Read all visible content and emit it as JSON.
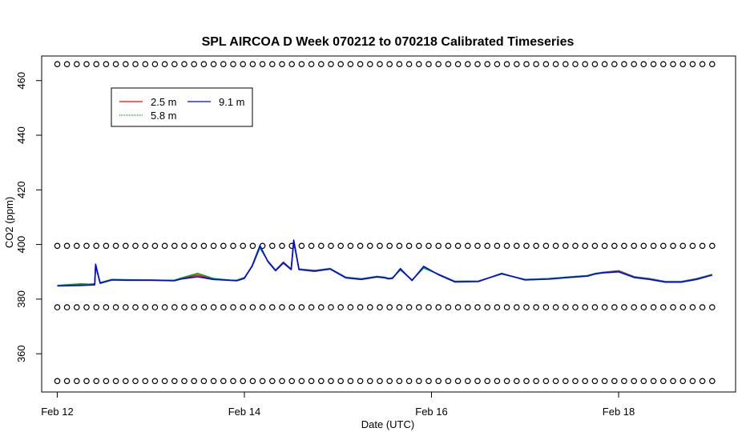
{
  "chart_data": {
    "type": "line",
    "title": "SPL AIRCOA D  Week 070212 to 070218  Calibrated Timeseries",
    "xlabel": "Date (UTC)",
    "ylabel": "CO2 (ppm)",
    "xlim": [
      "2007-02-11T20:00",
      "2007-02-19T06:00"
    ],
    "ylim": [
      346,
      469
    ],
    "x_ticks": [
      {
        "label": "Feb 12",
        "value": "2007-02-12T00:00"
      },
      {
        "label": "Feb 14",
        "value": "2007-02-14T00:00"
      },
      {
        "label": "Feb 16",
        "value": "2007-02-16T00:00"
      },
      {
        "label": "Feb 18",
        "value": "2007-02-18T00:00"
      }
    ],
    "y_ticks": [
      360,
      380,
      400,
      420,
      440,
      460
    ],
    "legend_position": "top-left",
    "series": [
      {
        "name": "2.5 m",
        "color": "#ff0000",
        "x": [
          "2007-02-12T00:00",
          "2007-02-12T06:00",
          "2007-02-12T09:36",
          "2007-02-12T09:50",
          "2007-02-12T11:00",
          "2007-02-12T14:00",
          "2007-02-12T18:00",
          "2007-02-13T00:00",
          "2007-02-13T06:00",
          "2007-02-13T08:00",
          "2007-02-13T12:00",
          "2007-02-13T16:00",
          "2007-02-13T20:00",
          "2007-02-13T22:00",
          "2007-02-14T00:00",
          "2007-02-14T02:00",
          "2007-02-14T04:00",
          "2007-02-14T06:00",
          "2007-02-14T08:00",
          "2007-02-14T10:00",
          "2007-02-14T12:00",
          "2007-02-14T12:40",
          "2007-02-14T14:00",
          "2007-02-14T18:00",
          "2007-02-14T22:00",
          "2007-02-15T02:00",
          "2007-02-15T06:00",
          "2007-02-15T10:00",
          "2007-02-15T12:00",
          "2007-02-15T13:00",
          "2007-02-15T14:00",
          "2007-02-15T16:00",
          "2007-02-15T19:00",
          "2007-02-15T22:00",
          "2007-02-16T02:00",
          "2007-02-16T06:00",
          "2007-02-16T12:00",
          "2007-02-16T18:00",
          "2007-02-17T00:00",
          "2007-02-17T06:00",
          "2007-02-17T12:00",
          "2007-02-17T16:00",
          "2007-02-17T18:00",
          "2007-02-17T20:00",
          "2007-02-18T00:00",
          "2007-02-18T04:00",
          "2007-02-18T08:00",
          "2007-02-18T12:00",
          "2007-02-18T16:00",
          "2007-02-18T20:00",
          "2007-02-19T00:00"
        ],
        "y": [
          385,
          385.2,
          385.6,
          392.2,
          386,
          387.2,
          387,
          387,
          386.8,
          387.6,
          388.8,
          387.4,
          387,
          386.8,
          387.8,
          392,
          399,
          394,
          390.6,
          393.6,
          391,
          401.2,
          391,
          390.5,
          391.2,
          388,
          387.4,
          388.3,
          388,
          387.6,
          387.8,
          390.8,
          387,
          391.5,
          389,
          386.5,
          386.6,
          389.2,
          387.2,
          387.5,
          388.2,
          388.6,
          389.4,
          389.8,
          390.4,
          388.2,
          387.5,
          386.4,
          386.4,
          387.5,
          389
        ]
      },
      {
        "name": "5.8 m",
        "color": "#00aa00",
        "x": [
          "2007-02-12T00:00",
          "2007-02-12T06:00",
          "2007-02-12T09:36",
          "2007-02-12T09:50",
          "2007-02-12T11:00",
          "2007-02-12T14:00",
          "2007-02-12T18:00",
          "2007-02-13T00:00",
          "2007-02-13T06:00",
          "2007-02-13T08:00",
          "2007-02-13T12:00",
          "2007-02-13T16:00",
          "2007-02-13T20:00",
          "2007-02-13T22:00",
          "2007-02-14T00:00",
          "2007-02-14T02:00",
          "2007-02-14T04:00",
          "2007-02-14T06:00",
          "2007-02-14T08:00",
          "2007-02-14T10:00",
          "2007-02-14T12:00",
          "2007-02-14T12:40",
          "2007-02-14T14:00",
          "2007-02-14T18:00",
          "2007-02-14T22:00",
          "2007-02-15T02:00",
          "2007-02-15T06:00",
          "2007-02-15T10:00",
          "2007-02-15T12:00",
          "2007-02-15T13:00",
          "2007-02-15T14:00",
          "2007-02-15T16:00",
          "2007-02-15T19:00",
          "2007-02-15T22:00",
          "2007-02-16T02:00",
          "2007-02-16T06:00",
          "2007-02-16T12:00",
          "2007-02-16T18:00",
          "2007-02-17T00:00",
          "2007-02-17T06:00",
          "2007-02-17T12:00",
          "2007-02-17T16:00",
          "2007-02-17T18:00",
          "2007-02-17T20:00",
          "2007-02-18T00:00",
          "2007-02-18T04:00",
          "2007-02-18T08:00",
          "2007-02-18T12:00",
          "2007-02-18T16:00",
          "2007-02-18T20:00",
          "2007-02-19T00:00"
        ],
        "y": [
          385,
          385.6,
          385.4,
          392,
          386,
          387.2,
          387.1,
          387,
          386.9,
          387.8,
          389.4,
          387.6,
          387,
          386.9,
          387.9,
          392,
          398.8,
          394,
          390.6,
          393.4,
          391,
          400.8,
          391,
          390.4,
          391.2,
          388,
          387.4,
          388.3,
          388,
          387.6,
          387.8,
          390.7,
          387,
          391.4,
          389,
          386.5,
          386.6,
          389.2,
          387.2,
          387.5,
          388.2,
          388.6,
          389.4,
          389.8,
          390.2,
          388.1,
          387.4,
          386.4,
          386.4,
          387.4,
          389
        ]
      },
      {
        "name": "9.1 m",
        "color": "#0000ff",
        "x": [
          "2007-02-12T00:00",
          "2007-02-12T06:00",
          "2007-02-12T09:36",
          "2007-02-12T09:50",
          "2007-02-12T11:00",
          "2007-02-12T14:00",
          "2007-02-12T18:00",
          "2007-02-13T00:00",
          "2007-02-13T06:00",
          "2007-02-13T08:00",
          "2007-02-13T12:00",
          "2007-02-13T16:00",
          "2007-02-13T20:00",
          "2007-02-13T22:00",
          "2007-02-14T00:00",
          "2007-02-14T02:00",
          "2007-02-14T04:00",
          "2007-02-14T06:00",
          "2007-02-14T08:00",
          "2007-02-14T10:00",
          "2007-02-14T12:00",
          "2007-02-14T12:40",
          "2007-02-14T14:00",
          "2007-02-14T18:00",
          "2007-02-14T22:00",
          "2007-02-15T02:00",
          "2007-02-15T06:00",
          "2007-02-15T10:00",
          "2007-02-15T12:00",
          "2007-02-15T13:00",
          "2007-02-15T14:00",
          "2007-02-15T16:00",
          "2007-02-15T19:00",
          "2007-02-15T22:00",
          "2007-02-16T02:00",
          "2007-02-16T06:00",
          "2007-02-16T12:00",
          "2007-02-16T18:00",
          "2007-02-17T00:00",
          "2007-02-17T06:00",
          "2007-02-17T12:00",
          "2007-02-17T16:00",
          "2007-02-17T18:00",
          "2007-02-17T20:00",
          "2007-02-18T00:00",
          "2007-02-18T04:00",
          "2007-02-18T08:00",
          "2007-02-18T12:00",
          "2007-02-18T16:00",
          "2007-02-18T20:00",
          "2007-02-19T00:00"
        ],
        "y": [
          384.8,
          385,
          385.2,
          392.8,
          385.8,
          387,
          386.9,
          386.9,
          386.7,
          387.4,
          388.2,
          387.2,
          386.9,
          386.7,
          387.6,
          392.2,
          399.6,
          393.8,
          390.4,
          393.2,
          390.8,
          401.6,
          390.8,
          390.2,
          391,
          387.8,
          387.2,
          388.1,
          387.8,
          387.4,
          387.6,
          391.2,
          386.8,
          392,
          388.8,
          386.3,
          386.4,
          389.4,
          387,
          387.3,
          388,
          388.4,
          389.2,
          389.6,
          390,
          387.9,
          387.2,
          386.2,
          386.2,
          387.2,
          388.8
        ]
      },
      {
        "name": "",
        "color": "#000000",
        "marker": "circle",
        "x_start": "2007-02-12T00:00",
        "x_end": "2007-02-19T00:00",
        "count": 68,
        "levels": [
          350,
          377,
          399.5,
          466
        ]
      }
    ],
    "legend": [
      {
        "label": "2.5 m",
        "color": "#ff0000"
      },
      {
        "label": "5.8 m",
        "color": "#00aa00"
      },
      {
        "label": "9.1 m",
        "color": "#0000ff"
      }
    ]
  }
}
